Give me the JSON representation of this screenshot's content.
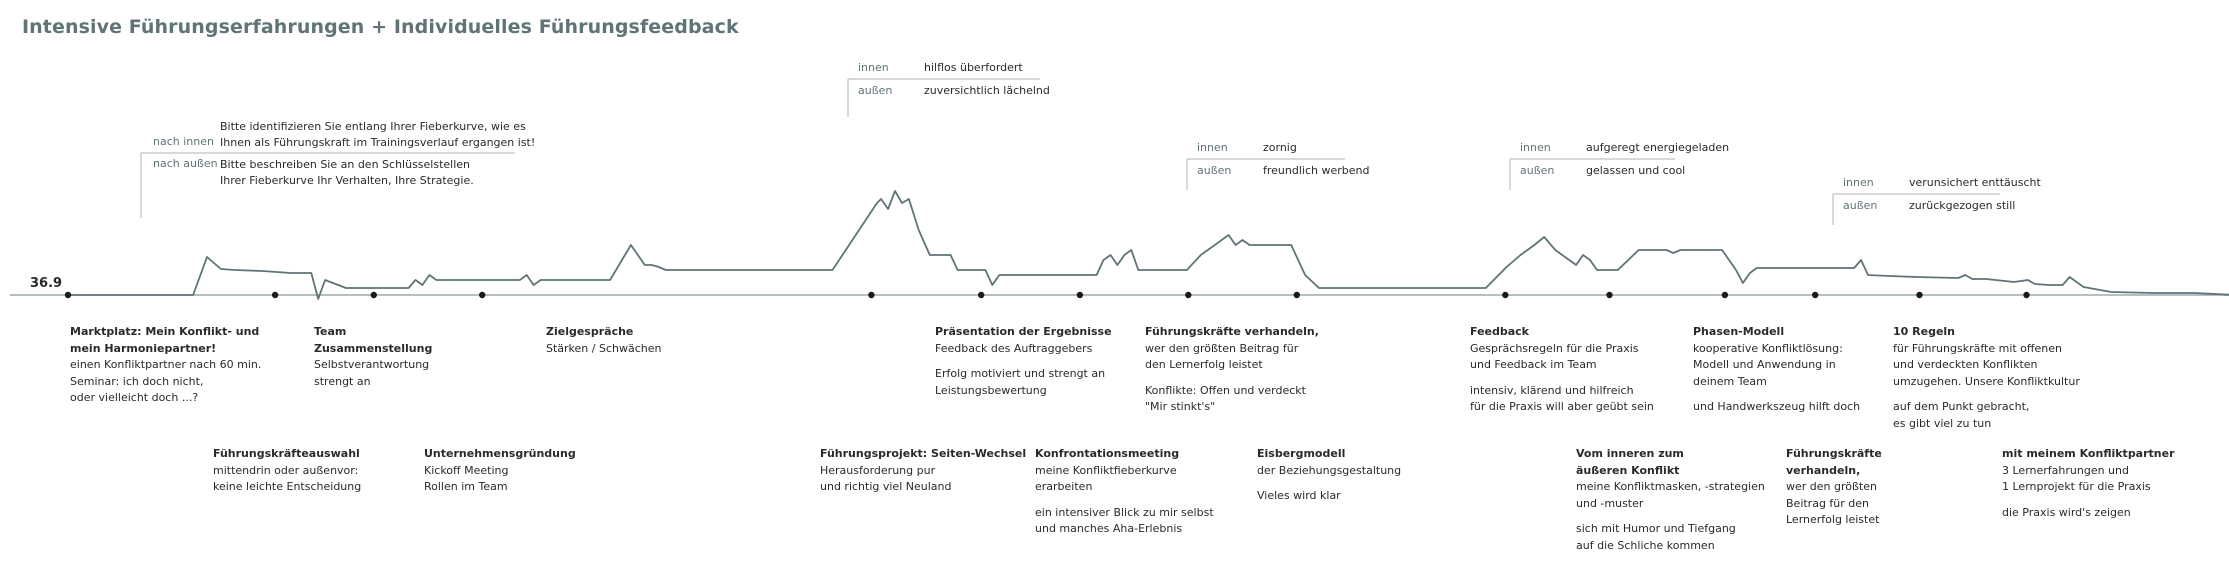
{
  "title": "Intensive Führungserfahrungen + Individuelles Führungsfeedback",
  "baseline_value": "36.9",
  "colors": {
    "curve": "#5f7476",
    "baseline": "#8a9a9c",
    "title": "#5f7476",
    "text": "#2a2a2a",
    "bracket": "#aab6b7"
  },
  "curve": [
    [
      0,
      0
    ],
    [
      90,
      0
    ],
    [
      100,
      -38
    ],
    [
      110,
      -26
    ],
    [
      120,
      -25
    ],
    [
      140,
      -24
    ],
    [
      160,
      -22
    ],
    [
      175,
      -22
    ],
    [
      180,
      4
    ],
    [
      185,
      -15
    ],
    [
      200,
      -7
    ],
    [
      220,
      -7
    ],
    [
      245,
      -7
    ],
    [
      250,
      -15
    ],
    [
      255,
      -10
    ],
    [
      260,
      -20
    ],
    [
      265,
      -15
    ],
    [
      270,
      -15
    ],
    [
      280,
      -15
    ],
    [
      300,
      -15
    ],
    [
      325,
      -15
    ],
    [
      330,
      -20
    ],
    [
      335,
      -10
    ],
    [
      340,
      -15
    ],
    [
      370,
      -15
    ],
    [
      390,
      -15
    ],
    [
      405,
      -50
    ],
    [
      415,
      -30
    ],
    [
      420,
      -30
    ],
    [
      425,
      -28
    ],
    [
      430,
      -25
    ],
    [
      450,
      -25
    ],
    [
      480,
      -25
    ],
    [
      520,
      -25
    ],
    [
      550,
      -25
    ],
    [
      582,
      -92
    ],
    [
      585,
      -96
    ],
    [
      590,
      -86
    ],
    [
      595,
      -104
    ],
    [
      600,
      -92
    ],
    [
      605,
      -96
    ],
    [
      612,
      -65
    ],
    [
      620,
      -40
    ],
    [
      630,
      -40
    ],
    [
      635,
      -40
    ],
    [
      640,
      -25
    ],
    [
      650,
      -25
    ],
    [
      660,
      -25
    ],
    [
      665,
      -10
    ],
    [
      670,
      -20
    ],
    [
      680,
      -20
    ],
    [
      700,
      -20
    ],
    [
      720,
      -20
    ],
    [
      740,
      -20
    ],
    [
      745,
      -35
    ],
    [
      750,
      -40
    ],
    [
      755,
      -30
    ],
    [
      760,
      -40
    ],
    [
      765,
      -45
    ],
    [
      770,
      -25
    ],
    [
      775,
      -25
    ],
    [
      790,
      -25
    ],
    [
      805,
      -25
    ],
    [
      815,
      -40
    ],
    [
      825,
      -50
    ],
    [
      830,
      -55
    ],
    [
      835,
      -60
    ],
    [
      840,
      -50
    ],
    [
      845,
      -55
    ],
    [
      850,
      -50
    ],
    [
      860,
      -50
    ],
    [
      870,
      -50
    ],
    [
      880,
      -50
    ],
    [
      890,
      -20
    ],
    [
      900,
      -7
    ],
    [
      920,
      -7
    ],
    [
      950,
      -7
    ],
    [
      980,
      -7
    ],
    [
      1010,
      -7
    ],
    [
      1020,
      -7
    ],
    [
      1035,
      -28
    ],
    [
      1045,
      -40
    ],
    [
      1055,
      -50
    ],
    [
      1062,
      -58
    ],
    [
      1070,
      -45
    ],
    [
      1080,
      -35
    ],
    [
      1085,
      -30
    ],
    [
      1090,
      -40
    ],
    [
      1095,
      -35
    ],
    [
      1100,
      -25
    ],
    [
      1105,
      -25
    ],
    [
      1110,
      -25
    ],
    [
      1115,
      -25
    ],
    [
      1130,
      -45
    ],
    [
      1140,
      -45
    ],
    [
      1150,
      -45
    ],
    [
      1155,
      -42
    ],
    [
      1160,
      -45
    ],
    [
      1170,
      -45
    ],
    [
      1180,
      -45
    ],
    [
      1190,
      -45
    ],
    [
      1200,
      -25
    ],
    [
      1205,
      -12
    ],
    [
      1210,
      -22
    ],
    [
      1215,
      -27
    ],
    [
      1220,
      -27
    ],
    [
      1240,
      -27
    ],
    [
      1260,
      -27
    ],
    [
      1285,
      -27
    ],
    [
      1290,
      -35
    ],
    [
      1295,
      -20
    ],
    [
      1310,
      -19
    ],
    [
      1330,
      -18
    ],
    [
      1360,
      -17
    ],
    [
      1365,
      -20
    ],
    [
      1370,
      -16
    ],
    [
      1380,
      -16
    ],
    [
      1400,
      -13
    ],
    [
      1410,
      -15
    ],
    [
      1415,
      -11
    ],
    [
      1425,
      -10
    ],
    [
      1435,
      -10
    ],
    [
      1440,
      -18
    ],
    [
      1450,
      -8
    ],
    [
      1470,
      -3
    ],
    [
      1500,
      -2
    ],
    [
      1530,
      -2
    ],
    [
      1560,
      0
    ]
  ],
  "markers": [
    0,
    149,
    220,
    298,
    578,
    657,
    728,
    806,
    884,
    1034,
    1109,
    1192,
    1257,
    1332,
    1409
  ],
  "annotations": [
    {
      "keys": [
        "nach innen",
        "nach außen"
      ],
      "values": [
        "Bitte identifizieren Sie entlang Ihrer Fieberkurve, wie es",
        "Ihnen als Führungskraft im Trainingsverlauf ergangen ist!"
      ],
      "values2": [
        "Bitte beschreiben Sie an den Schlüsselstellen",
        "Ihrer Fieberkurve Ihr Verhalten, Ihre Strategie."
      ]
    },
    {
      "keys": [
        "innen",
        "außen"
      ],
      "values": [
        "hilflos überfordert",
        "zuversichtlich lächelnd"
      ]
    },
    {
      "keys": [
        "innen",
        "außen"
      ],
      "values": [
        "zornig",
        "freundlich werbend"
      ]
    },
    {
      "keys": [
        "innen",
        "außen"
      ],
      "values": [
        "aufgeregt energiegeladen",
        "gelassen und cool"
      ]
    },
    {
      "keys": [
        "innen",
        "außen"
      ],
      "values": [
        "verunsichert enttäuscht",
        "zurückgezogen still"
      ]
    }
  ],
  "stages_top": [
    {
      "title": "Marktplatz: Mein  Konflikt- und mein Harmoniepartner!",
      "title_lines": [
        "Marktplatz: Mein  Konflikt- und",
        "mein Harmoniepartner!"
      ],
      "lines": [
        "einen Konfliktpartner nach 60 min.",
        "Seminar: ich doch nicht,",
        "oder vielleicht doch ...?"
      ]
    },
    {
      "title_lines": [
        "Team",
        "Zusammenstellung"
      ],
      "lines": [
        "Selbstverantwortung",
        "strengt an"
      ]
    },
    {
      "title_lines": [
        "Zielgespräche"
      ],
      "lines": [
        "Stärken / Schwächen"
      ]
    },
    {
      "title_lines": [
        "Präsentation der Ergebnisse"
      ],
      "lines": [
        "Feedback des Auftraggebers",
        "",
        "Erfolg motiviert und strengt an",
        "Leistungsbewertung"
      ]
    },
    {
      "title_lines": [
        "Führungskräfte verhandeln,"
      ],
      "lines": [
        "wer den größten Beitrag für",
        "den Lernerfolg leistet",
        "",
        "Konflikte: Offen und verdeckt",
        "\"Mir stinkt's\""
      ]
    },
    {
      "title_lines": [
        "Feedback"
      ],
      "lines": [
        "Gesprächsregeln für die Praxis",
        "und Feedback im Team",
        "",
        "intensiv, klärend und hilfreich",
        "für die Praxis will aber geübt sein"
      ]
    },
    {
      "title_lines": [
        "Phasen-Modell"
      ],
      "lines": [
        "kooperative Konfliktlösung:",
        "Modell und  Anwendung in",
        "deinem Team",
        "",
        "und Handwerkszeug hilft doch"
      ]
    },
    {
      "title_lines": [
        "10 Regeln"
      ],
      "lines": [
        "für Führungskräfte mit offenen",
        "und verdeckten Konflikten",
        "umzugehen. Unsere Konfliktkultur",
        "",
        "auf dem Punkt gebracht,",
        "es gibt viel zu tun"
      ]
    }
  ],
  "stages_bottom": [
    {
      "title_lines": [
        "Führungskräfteauswahl"
      ],
      "lines": [
        "mittendrin oder außenvor:",
        "keine leichte Entscheidung"
      ]
    },
    {
      "title_lines": [
        "Unternehmensgründung"
      ],
      "lines": [
        "Kickoff Meeting",
        "Rollen im Team"
      ]
    },
    {
      "title_lines": [
        "Führungsprojekt: Seiten-Wechsel"
      ],
      "lines": [
        "Herausforderung pur",
        "und richtig viel Neuland"
      ]
    },
    {
      "title_lines": [
        "Konfrontationsmeeting"
      ],
      "lines": [
        "meine Konfliktfieberkurve",
        "erarbeiten",
        "",
        "ein intensiver Blick zu mir selbst",
        "und manches Aha-Erlebnis"
      ]
    },
    {
      "title_lines": [
        "Eisbergmodell"
      ],
      "lines": [
        "der Beziehungsgestaltung",
        "",
        "Vieles wird klar"
      ]
    },
    {
      "title_lines": [
        "Vom inneren zum",
        "äußeren Konflikt"
      ],
      "lines": [
        "meine Konfliktmasken, -strategien",
        "und -muster",
        "",
        "sich mit Humor und Tiefgang",
        "auf die Schliche kommen"
      ]
    },
    {
      "title_lines": [
        "Führungskräfte",
        "verhandeln,"
      ],
      "lines": [
        "wer den größten",
        "Beitrag für den",
        "Lernerfolg leistet"
      ]
    },
    {
      "title_lines": [
        "mit meinem Konfliktpartner"
      ],
      "lines": [
        "3 Lernerfahrungen und",
        "1 Lernprojekt für die Praxis",
        "",
        "die Praxis wird's zeigen"
      ]
    }
  ]
}
